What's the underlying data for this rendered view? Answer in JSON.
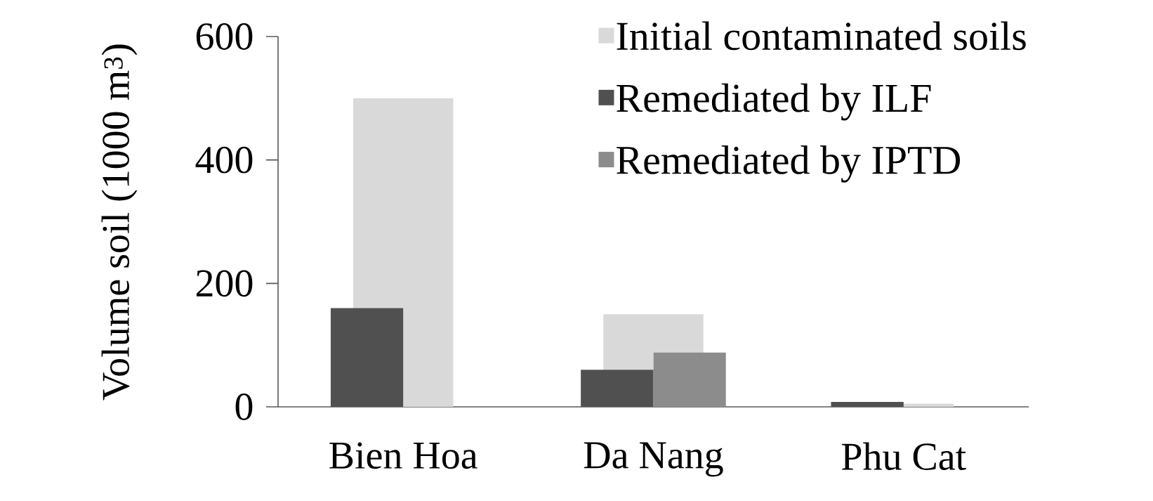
{
  "chart_data": {
    "type": "bar",
    "categories": [
      "Bien Hoa",
      "Da Nang",
      "Phu Cat"
    ],
    "ylabel": "Volume soil (1000 m$^{3}$)",
    "ylim": [
      0,
      600
    ],
    "yticks": [
      0,
      200,
      400,
      600
    ],
    "series": [
      {
        "name": "Initial contaminated soils",
        "color": "#d9d9d9",
        "values": [
          500,
          150,
          5
        ]
      },
      {
        "name": "Remediated by ILF",
        "color": "#505050",
        "values": [
          160,
          60,
          8
        ]
      },
      {
        "name": "Remediated by IPTD",
        "color": "#8c8c8c",
        "values": [
          null,
          88,
          null
        ]
      }
    ],
    "legend": "top right"
  }
}
